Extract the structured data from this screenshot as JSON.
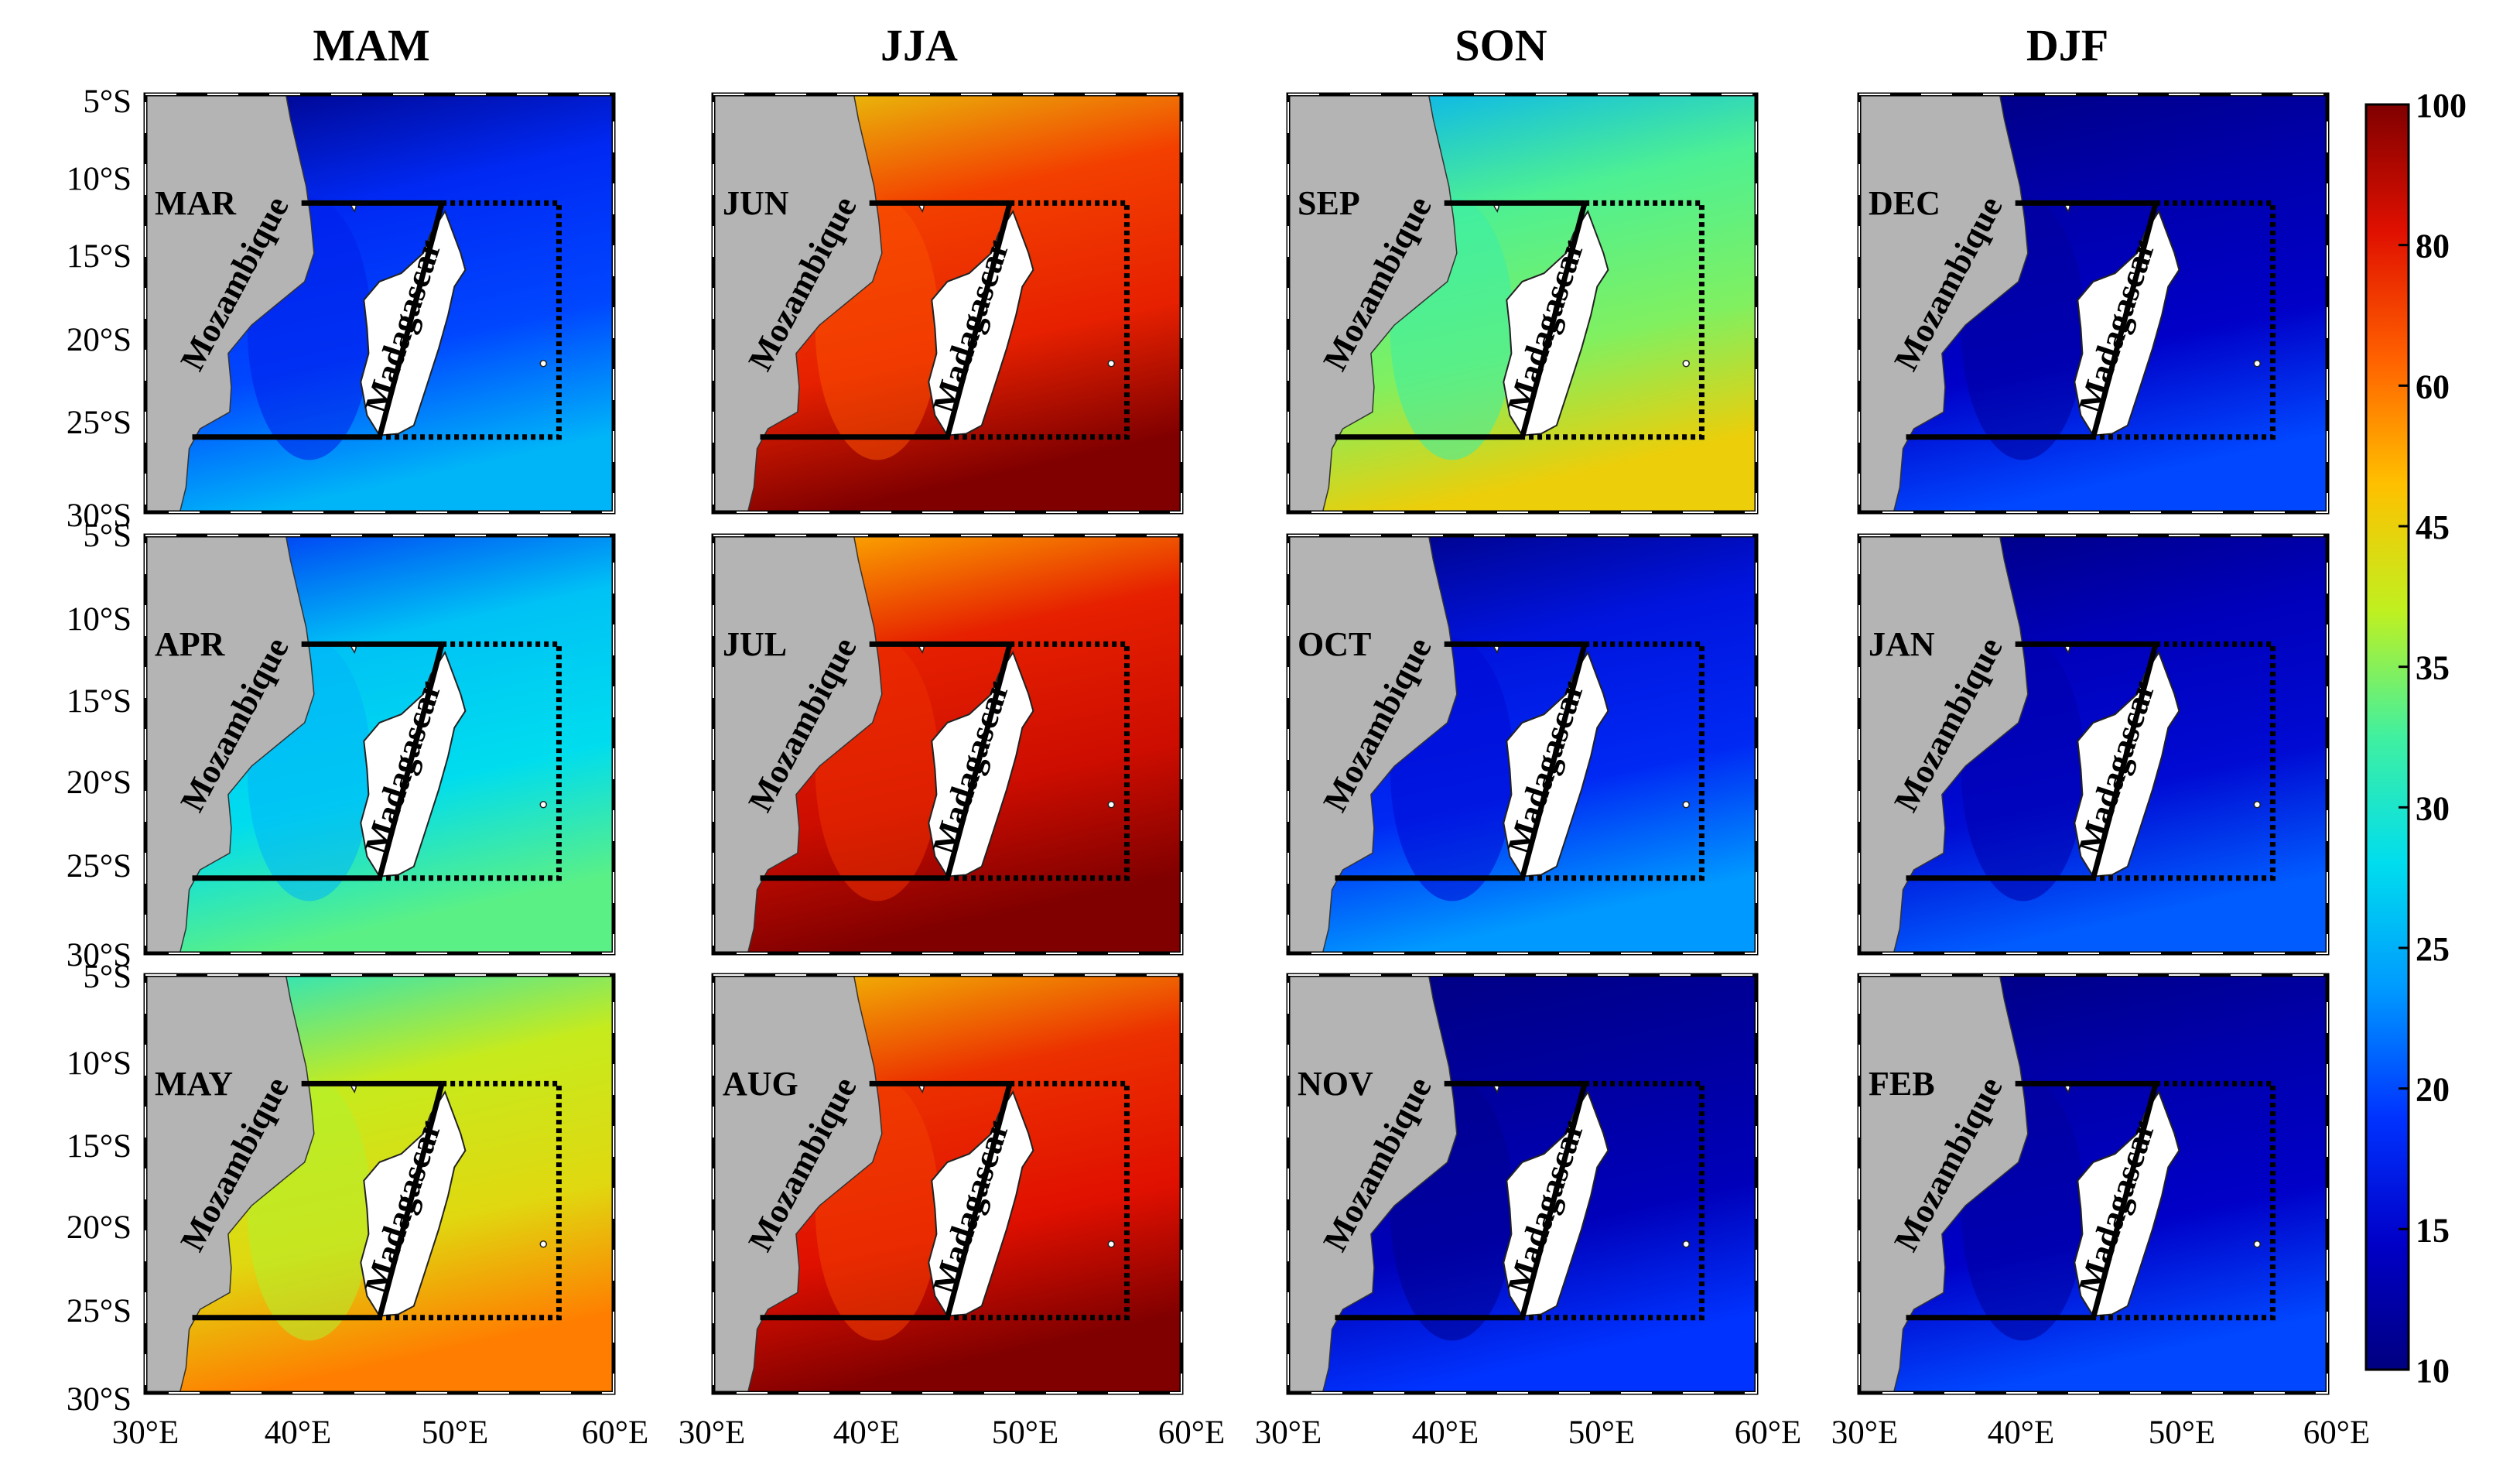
{
  "figure": {
    "seasons": [
      "MAM",
      "JJA",
      "SON",
      "DJF"
    ],
    "rows": [
      [
        "MAR",
        "JUN",
        "SEP",
        "DEC"
      ],
      [
        "APR",
        "JUL",
        "OCT",
        "JAN"
      ],
      [
        "MAY",
        "AUG",
        "NOV",
        "FEB"
      ]
    ],
    "land_labels": {
      "mainland": "Mozambique",
      "island": "Madagascar"
    },
    "lat_ticks": [
      "5°S",
      "10°S",
      "15°S",
      "20°S",
      "25°S",
      "30°S"
    ],
    "lat_ticks_overlap_row": [
      "30°S",
      "5°S"
    ],
    "lon_ticks": [
      "30°E",
      "40°E",
      "50°E",
      "60°E"
    ],
    "lon_tick_first_column_start": "30°E",
    "extent": {
      "lon_min": 30,
      "lon_max": 60,
      "lat_min": -30,
      "lat_max": -5
    },
    "box_solid": {
      "lon_west": 33,
      "lon_east": 49,
      "lat_north": -11.5,
      "lat_south": -25.5
    },
    "box_dotted": {
      "lon_west": 49,
      "lon_east": 56.5,
      "lat_north": -11.5,
      "lat_south": -25.5
    },
    "colorbar": {
      "ticks": [
        10,
        15,
        20,
        25,
        30,
        35,
        45,
        60,
        80,
        100
      ],
      "tick_labels": [
        "10",
        "15",
        "20",
        "25",
        "30",
        "35",
        "45",
        "60",
        "80",
        "100"
      ],
      "colors": [
        "#000080",
        "#0000c8",
        "#0033ff",
        "#0099ff",
        "#00ddee",
        "#40f0a0",
        "#c0f020",
        "#ffc000",
        "#ff6000",
        "#e01000",
        "#800000"
      ]
    },
    "panel_intensity": [
      [
        0.22,
        0.88,
        0.55,
        0.1
      ],
      [
        0.4,
        0.92,
        0.18,
        0.12
      ],
      [
        0.65,
        0.9,
        0.08,
        0.1
      ]
    ]
  }
}
